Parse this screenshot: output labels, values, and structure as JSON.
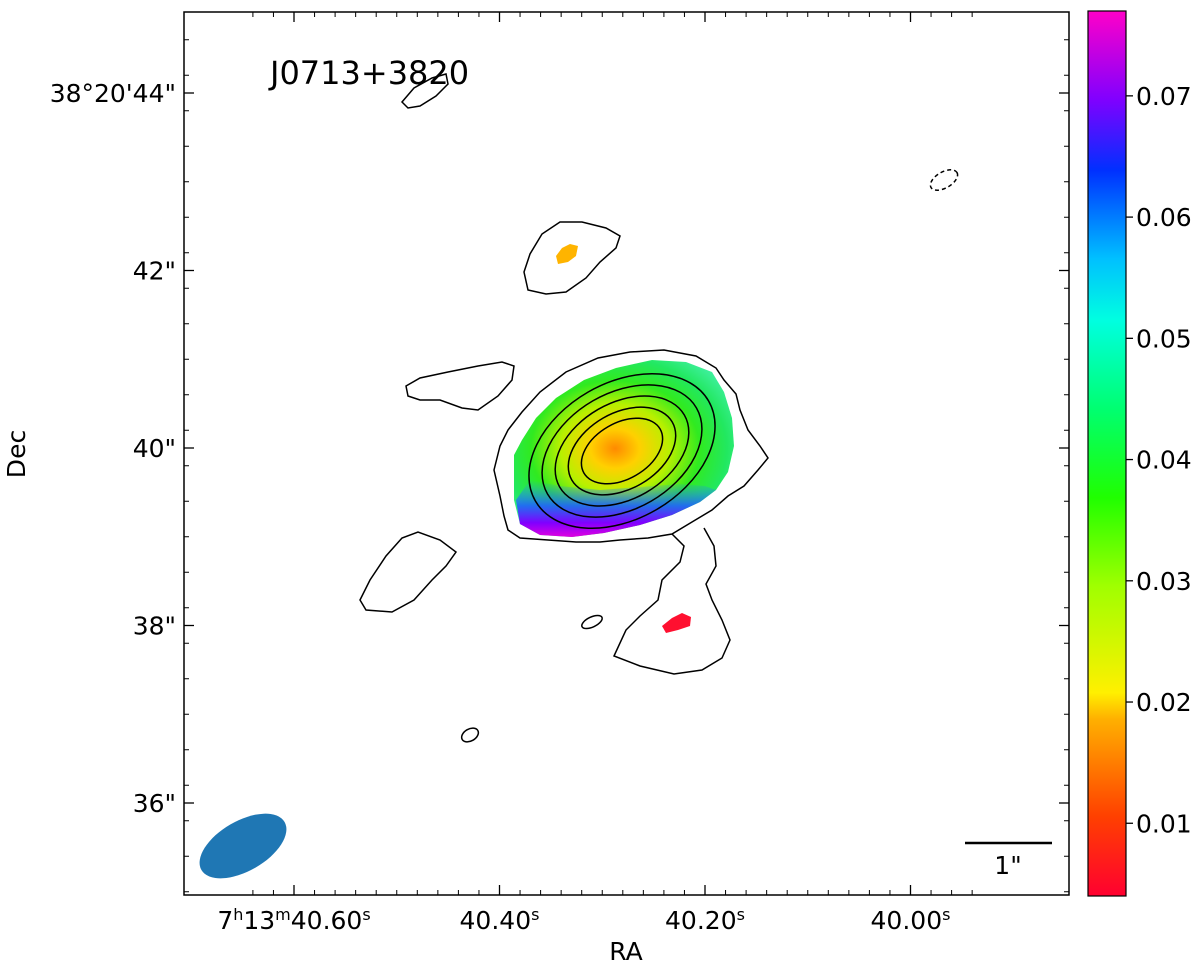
{
  "chart_data": {
    "type": "heatmap",
    "title": "J0713+3820",
    "xlabel": "RA",
    "ylabel": "Dec",
    "x_ticks": [
      {
        "value": 40.6,
        "prefix": "7",
        "h": "h",
        "m_val": "13",
        "m": "m",
        "s_val": "40.60",
        "s": "s"
      },
      {
        "value": 40.4,
        "prefix": "",
        "h": "",
        "m_val": "",
        "m": "",
        "s_val": "40.40",
        "s": "s"
      },
      {
        "value": 40.2,
        "prefix": "",
        "h": "",
        "m_val": "",
        "m": "",
        "s_val": "40.20",
        "s": "s"
      },
      {
        "value": 40.0,
        "prefix": "",
        "h": "",
        "m_val": "",
        "m": "",
        "s_val": "40.00",
        "s": "s"
      }
    ],
    "y_ticks": [
      {
        "value": 44,
        "label": "38°20'44\""
      },
      {
        "value": 42,
        "label": "42\""
      },
      {
        "value": 40,
        "label": "40\""
      },
      {
        "value": 38,
        "label": "38\""
      },
      {
        "value": 36,
        "label": "36\""
      }
    ],
    "x_range_s": [
      40.66,
      39.92
    ],
    "y_range_arcsec": [
      34.9,
      49.0
    ],
    "colorbar": {
      "range": [
        0.004,
        0.077
      ],
      "ticks": [
        "0.01",
        "0.02",
        "0.03",
        "0.04",
        "0.05",
        "0.06",
        "0.07"
      ],
      "tick_values": [
        0.01,
        0.02,
        0.03,
        0.04,
        0.05,
        0.06,
        0.07
      ],
      "colormap": "gist_rainbow_r"
    },
    "scalebar_label": "1\"",
    "beam_color": "#1f77b4",
    "grid": false,
    "contour_color": "#000000",
    "heatmap_values_summary": {
      "core_peak": 0.015,
      "core_edge": 0.035,
      "southern_rim": 0.07,
      "north_blob": 0.018,
      "south_blob": 0.005
    }
  }
}
